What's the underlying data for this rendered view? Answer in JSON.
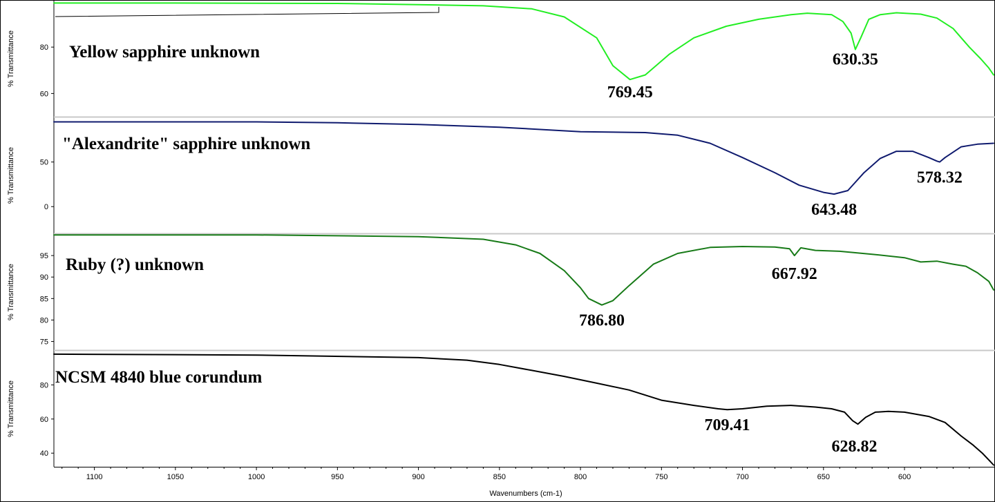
{
  "chart_data": {
    "type": "line",
    "xlabel": "Wavenumbers (cm-1)",
    "xlim": [
      1125,
      545
    ],
    "x_ticks": [
      1100,
      1050,
      1000,
      950,
      900,
      850,
      800,
      750,
      700,
      650,
      600
    ],
    "grid": false,
    "panels": [
      {
        "id": "yellow",
        "title": "Yellow sapphire unknown",
        "ylabel": "% Transmittance",
        "ylim": [
          50,
          100
        ],
        "y_ticks": [
          60,
          80
        ],
        "color": "#22ee22",
        "peaks": [
          {
            "x": 769.45,
            "label": "769.45"
          },
          {
            "x": 630.35,
            "label": "630.35"
          }
        ],
        "x": [
          1125,
          1050,
          950,
          900,
          860,
          830,
          810,
          790,
          780,
          769.45,
          760,
          745,
          730,
          710,
          690,
          670,
          660,
          645,
          638,
          633,
          630.35,
          627,
          622,
          615,
          605,
          590,
          580,
          570,
          560,
          553,
          548,
          545
        ],
        "y": [
          99,
          99,
          98.8,
          98.3,
          97.8,
          96.5,
          93,
          84,
          72,
          66,
          68,
          77,
          84,
          89,
          92,
          94,
          94.6,
          94,
          91,
          86,
          79,
          84,
          92,
          94,
          94.8,
          94.2,
          92.5,
          88,
          80,
          75,
          71,
          68
        ]
      },
      {
        "id": "alexandrite",
        "title": "\"Alexandrite\" sapphire unknown",
        "ylabel": "% Transmittance",
        "ylim": [
          -30,
          100
        ],
        "y_ticks": [
          0,
          50
        ],
        "color": "#0f1a6e",
        "peaks": [
          {
            "x": 643.48,
            "label": "643.48"
          },
          {
            "x": 578.32,
            "label": "578.32"
          }
        ],
        "x": [
          1125,
          1000,
          950,
          900,
          850,
          800,
          760,
          740,
          720,
          700,
          680,
          665,
          650,
          643.48,
          635,
          625,
          615,
          605,
          595,
          585,
          580,
          578.32,
          575,
          565,
          555,
          545
        ],
        "y": [
          95,
          95,
          94,
          92,
          89,
          84,
          83,
          80,
          71,
          55,
          38,
          24,
          16,
          14,
          18,
          38,
          54,
          62,
          62,
          55,
          51,
          50,
          55,
          67,
          70,
          71
        ]
      },
      {
        "id": "ruby",
        "title": "Ruby (?) unknown",
        "ylabel": "% Transmittance",
        "ylim": [
          73,
          100
        ],
        "y_ticks": [
          75,
          80,
          85,
          90,
          95
        ],
        "color": "#177a17",
        "peaks": [
          {
            "x": 786.8,
            "label": "786.80"
          },
          {
            "x": 667.92,
            "label": "667.92"
          }
        ],
        "x": [
          1125,
          1000,
          900,
          860,
          840,
          825,
          810,
          800,
          795,
          786.8,
          780,
          770,
          755,
          740,
          720,
          700,
          680,
          671,
          667.92,
          664,
          655,
          640,
          620,
          600,
          590,
          580,
          570,
          562,
          555,
          548,
          545
        ],
        "y": [
          99.8,
          99.8,
          99.4,
          98.8,
          97.5,
          95.5,
          91.5,
          87.5,
          85,
          83.5,
          84.5,
          88,
          93,
          95.5,
          96.9,
          97.1,
          97,
          96.6,
          95,
          96.8,
          96.2,
          96,
          95.3,
          94.5,
          93.5,
          93.7,
          93,
          92.5,
          91,
          89,
          87
        ]
      },
      {
        "id": "ncsm",
        "title": "NCSM 4840 blue corundum",
        "ylabel": "% Transmittance",
        "ylim": [
          32,
          100
        ],
        "y_ticks": [
          40,
          60,
          80
        ],
        "color": "#000000",
        "peaks": [
          {
            "x": 709.41,
            "label": "709.41"
          },
          {
            "x": 628.82,
            "label": "628.82"
          }
        ],
        "x": [
          1125,
          1000,
          900,
          870,
          850,
          830,
          810,
          790,
          770,
          750,
          730,
          715,
          709.41,
          700,
          685,
          670,
          655,
          645,
          637,
          632,
          628.82,
          624,
          618,
          610,
          600,
          585,
          575,
          565,
          558,
          552,
          548,
          545
        ],
        "y": [
          98,
          97.5,
          96,
          94.5,
          92,
          88.5,
          85,
          81,
          77,
          71,
          68,
          66,
          65.5,
          66,
          67.5,
          68,
          67,
          66,
          64,
          59,
          57,
          61,
          64,
          64.5,
          64,
          61.5,
          58,
          50,
          45,
          40,
          36,
          33
        ]
      }
    ]
  }
}
